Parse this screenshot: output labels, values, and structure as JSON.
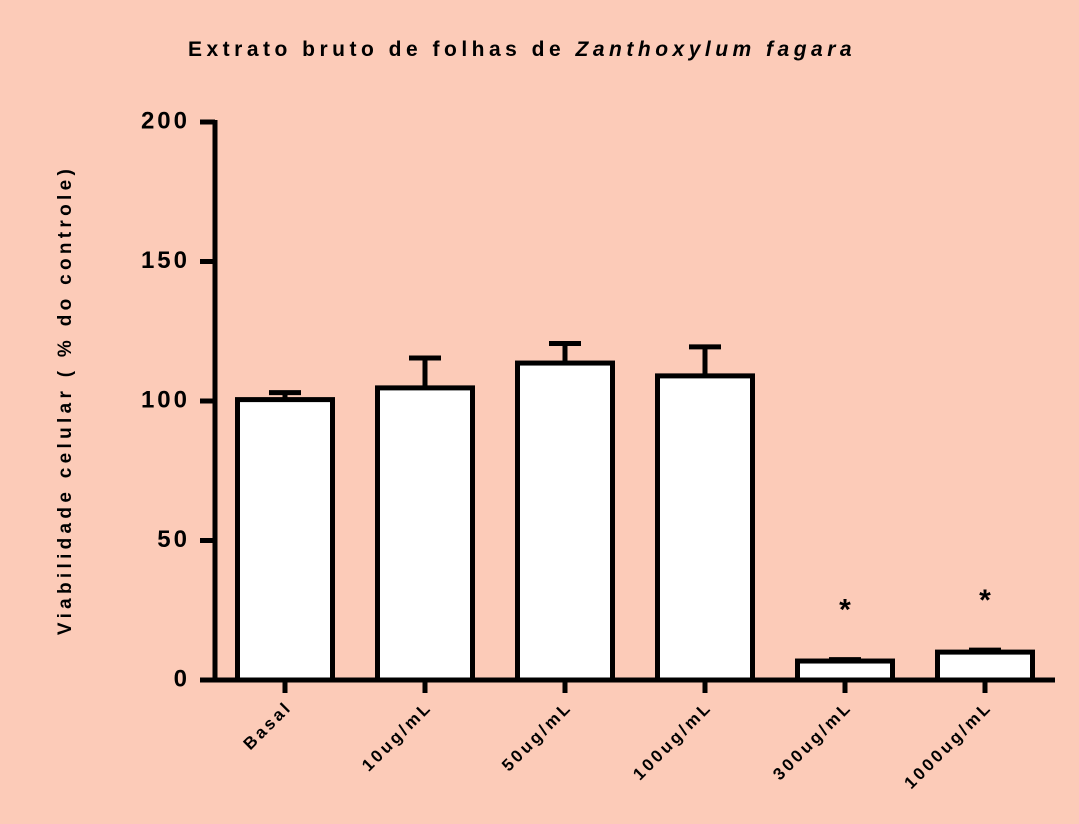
{
  "chart_data": {
    "type": "bar",
    "title": "Extrato bruto de folhas de",
    "title_italic": "Zanthoxylum fagara",
    "y_label": "Viabilidade celular ( % do controle)",
    "categories": [
      "Basal",
      "10ug/mL",
      "50ug/mL",
      "100ug/mL",
      "300ug/mL",
      "1000ug/mL"
    ],
    "values": [
      100.5,
      104.7,
      113.6,
      109,
      6.8,
      10
    ],
    "errors": [
      2.5,
      10.7,
      7,
      10.4,
      0.5,
      0.7
    ],
    "significance": [
      null,
      null,
      null,
      null,
      "*",
      "*"
    ],
    "color": "#ffffff",
    "edge_color": "#000000",
    "ylim": [
      0,
      200
    ],
    "yticks": [
      0,
      50,
      100,
      150,
      200
    ]
  }
}
